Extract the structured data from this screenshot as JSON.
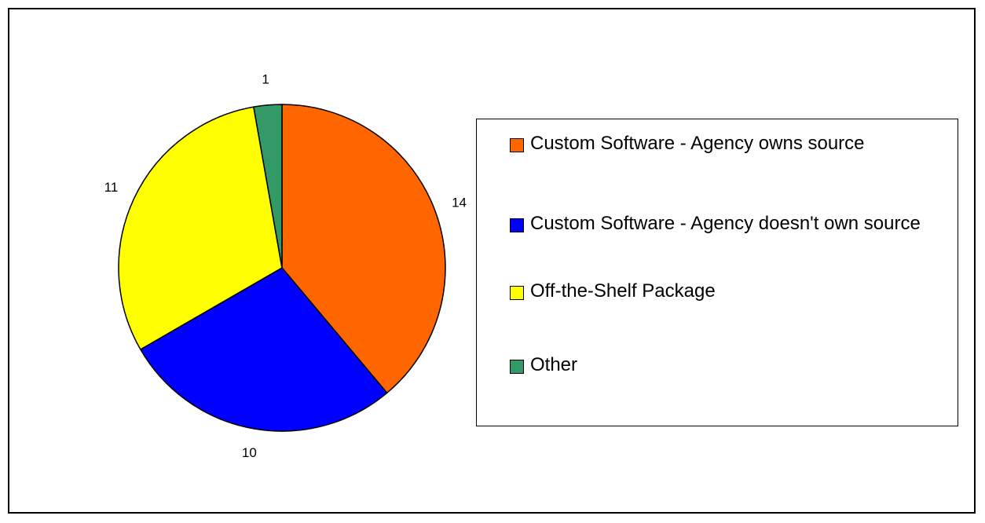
{
  "chart_data": {
    "type": "pie",
    "title": "",
    "slices": [
      {
        "label": "Custom Software - Agency owns source",
        "value": 14,
        "color": "#FF6600"
      },
      {
        "label": "Custom Software - Agency doesn't own source",
        "value": 10,
        "color": "#0000FF"
      },
      {
        "label": "Off-the-Shelf Package",
        "value": 11,
        "color": "#FFFF00"
      },
      {
        "label": "Other",
        "value": 1,
        "color": "#339966"
      }
    ],
    "data_labels": [
      "14",
      "10",
      "11",
      "1"
    ],
    "start_angle_deg": 0,
    "direction": "clockwise",
    "legend": {
      "placement": "right"
    }
  }
}
